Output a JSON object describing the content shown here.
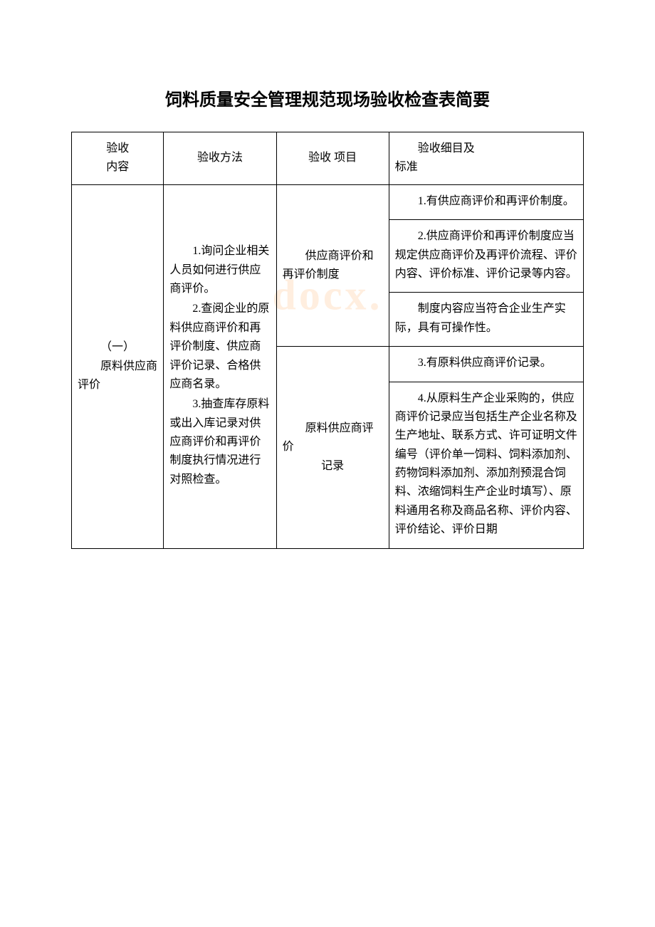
{
  "title": "饲料质量安全管理规范现场验收检查表简要",
  "watermark": "docx.",
  "headers": {
    "col1_line1": "验收",
    "col1_line2": "内容",
    "col2": "验收方法",
    "col3": "验收 项目",
    "col4_line1": "验收细目及",
    "col4_line2": "标准"
  },
  "rows": {
    "r1c1_p1": "（一）",
    "r1c1_p2": "原料供应商评价",
    "r1c2_p1": "1.询问企业相关人员如何进行供应商评价。",
    "r1c2_p2": "2.查阅企业的原料供应商评价和再评价制度、供应商评价记录、合格供应商名录。",
    "r1c2_p3": "3.抽查库存原料或出入库记录对供应商评价和再评价制度执行情况进行对照检查。",
    "r1c3_a_p1": "供应商评价和再评价制度",
    "r1c3_b_p1": "原料供应商评价",
    "r1c3_b_p2": "记录",
    "cell_1": "1.有供应商评价和再评价制度。",
    "cell_2": "2.供应商评价和再评价制度应当规定供应商评价及再评价流程、评价内容、评价标准、评价记录等内容。",
    "cell_3": "制度内容应当符合企业生产实际，具有可操作性。",
    "cell_4": "3.有原料供应商评价记录。",
    "cell_5": "4.从原料生产企业采购的，供应商评价记录应当包括生产企业名称及生产地址、联系方式、许可证明文件编号（评价单一饲料、饲料添加剂、药物饲料添加剂、添加剂预混合饲料、浓缩饲料生产企业时填写）、原料通用名称及商品名称、评价内容、评价结论、评价日期"
  },
  "styling": {
    "page_bg": "#ffffff",
    "text_color": "#000000",
    "border_color": "#000000",
    "watermark_color": "rgba(255, 200, 150, 0.3)",
    "title_fontsize": 24,
    "body_fontsize": 16,
    "line_height": 1.65,
    "font_family": "SimSun"
  }
}
